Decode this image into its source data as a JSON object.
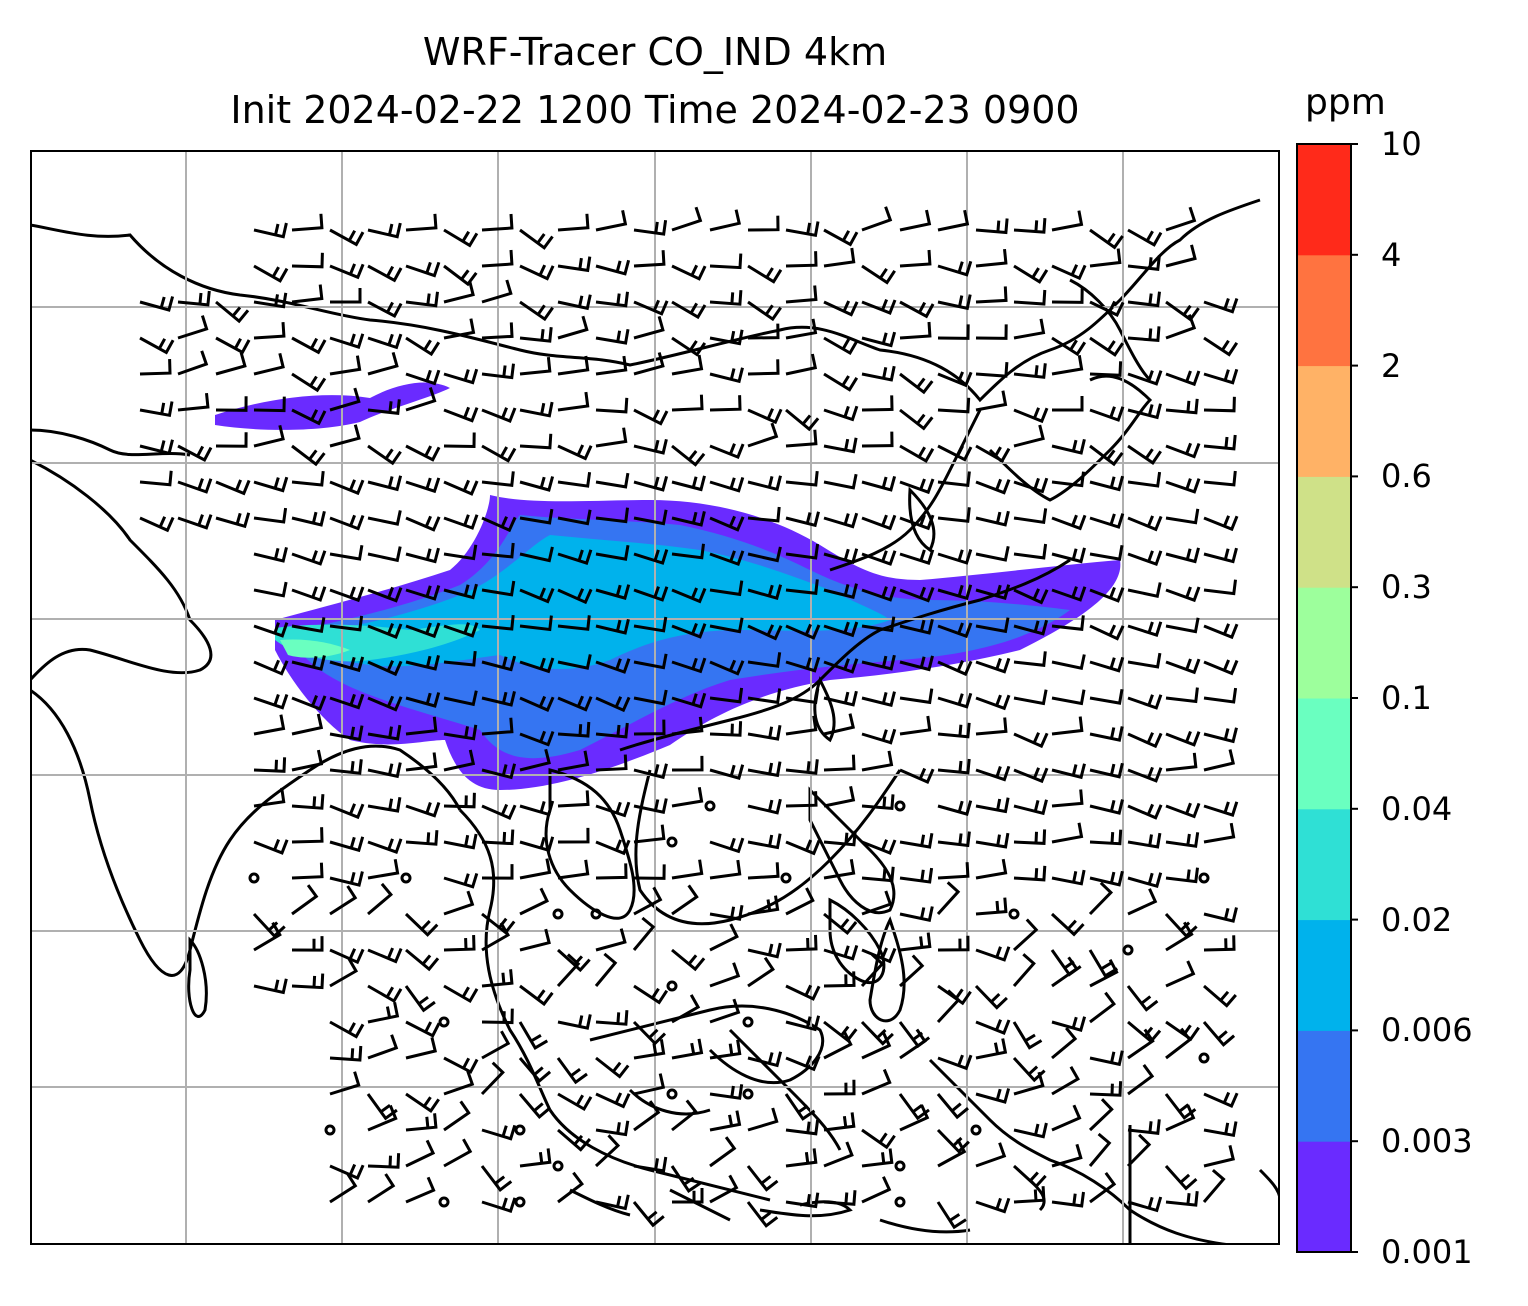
{
  "title_line1": "WRF-Tracer CO_IND 4km",
  "title_line2": "Init 2024-02-22 1200 Time 2024-02-23 0900",
  "colorbar": {
    "unit": "ppm",
    "levels": [
      "0.001",
      "0.003",
      "0.006",
      "0.02",
      "0.04",
      "0.1",
      "0.3",
      "0.6",
      "2",
      "4",
      "10"
    ],
    "colors": [
      "#6a2bff",
      "#3575f2",
      "#00b2ec",
      "#2fe0d5",
      "#6affc0",
      "#9dff9c",
      "#cfe188",
      "#ffb266",
      "#ff7340",
      "#ff2a1a"
    ]
  },
  "map": {
    "tracer_colors": {
      "outer": "#6a2bff",
      "mid": "#3575f2",
      "core": "#00b2ec",
      "hot": "#2fe0d5",
      "peak": "#6affc0"
    },
    "gridline_color": "#b0b0b0",
    "coastline_color": "#000000"
  }
}
